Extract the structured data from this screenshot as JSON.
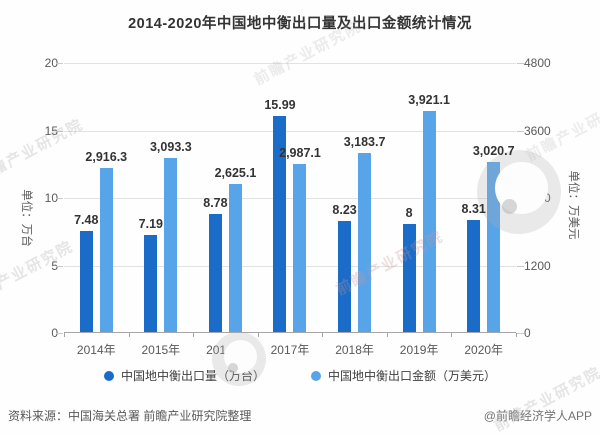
{
  "title": "2014-2020年中国地中衡出口量及出口金额统计情况",
  "chart_data": {
    "type": "bar",
    "categories": [
      "2014年",
      "2015年",
      "2016年",
      "2017年",
      "2018年",
      "2019年",
      "2020年"
    ],
    "series": [
      {
        "name": "中国地中衡出口量（万台）",
        "axis": "left",
        "color": "#1B6CC9",
        "values": [
          7.48,
          7.19,
          8.78,
          15.99,
          8.23,
          8,
          8.31
        ],
        "labels": [
          "7.48",
          "7.19",
          "8.78",
          "15.99",
          "8.23",
          "8",
          "8.31"
        ]
      },
      {
        "name": "中国地中衡出口金额（万美元）",
        "axis": "right",
        "color": "#58A4E9",
        "values": [
          2916.3,
          3093.3,
          2625.1,
          2987.1,
          3183.7,
          3921.1,
          3020.7
        ],
        "labels": [
          "2,916.3",
          "3,093.3",
          "2,625.1",
          "2,987.1",
          "3,183.7",
          "3,921.1",
          "3,020.7"
        ]
      }
    ],
    "left_axis": {
      "label": "单位：万台",
      "min": 0,
      "max": 20,
      "ticks": [
        "20",
        "15",
        "10",
        "5",
        "0"
      ]
    },
    "right_axis": {
      "label": "单位：万美元",
      "min": 0,
      "max": 4800,
      "ticks": [
        "4800",
        "3600",
        "2400",
        "1200",
        "0"
      ]
    },
    "grid": true,
    "legend_position": "bottom"
  },
  "footer": {
    "source": "资料来源：中国海关总署 前瞻产业研究院整理",
    "credit": "@前瞻经济学人APP"
  },
  "watermark": {
    "text": "前瞻产业研究院"
  }
}
